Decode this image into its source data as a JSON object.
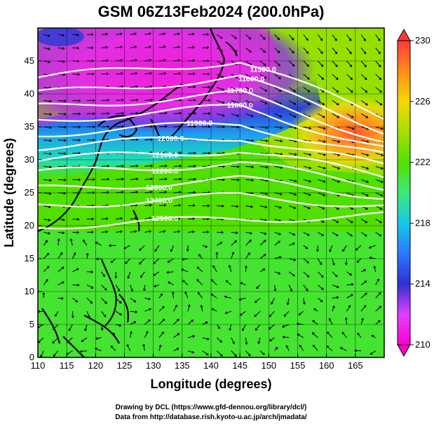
{
  "title": "GSM 06Z13Feb2024 (200.0hPa)",
  "xlabel": "Longitude (degrees)",
  "ylabel": "Latitude (degrees)",
  "credit_line1": "Drawing by DCL (https://www.gfd-dennou.org/library/dcl/)",
  "credit_line2": "Data from http://database.rish.kyoto-u.ac.jp/arch/jmadata/",
  "chart_data": {
    "type": "heatmap",
    "title": "GSM 06Z13Feb2024 (200.0hPa)",
    "xlabel": "Longitude (degrees)",
    "ylabel": "Latitude (degrees)",
    "xlim": [
      110,
      170
    ],
    "ylim": [
      0,
      50
    ],
    "x_ticks": [
      "110",
      "115",
      "120",
      "125",
      "130",
      "135",
      "140",
      "145",
      "150",
      "155",
      "160",
      "165"
    ],
    "y_ticks": [
      "0",
      "5",
      "10",
      "15",
      "20",
      "25",
      "30",
      "35",
      "40",
      "45"
    ],
    "colorbar": {
      "min": 210,
      "max": 230,
      "ticks": [
        "210",
        "214",
        "218",
        "222",
        "226",
        "230"
      ],
      "palette": [
        "#ff00cc",
        "#e040ff",
        "#3030d0",
        "#2a7aff",
        "#17c7e6",
        "#3ee87a",
        "#52e000",
        "#a6e000",
        "#f6d800",
        "#ff8c1a",
        "#ff3a3a"
      ]
    },
    "temperature_field_notes": "cold pool (~210K) over northeast Asia/Japan Sea, warm core (~228K) near 160-168E 33-40N",
    "height_contours": [
      {
        "label": "11500.0",
        "value": 11500
      },
      {
        "label": "11600.0",
        "value": 11600
      },
      {
        "label": "11700.0",
        "value": 11700
      },
      {
        "label": "11800.0",
        "value": 11800
      },
      {
        "label": "11900.0",
        "value": 11900
      },
      {
        "label": "12000.0",
        "value": 12000
      },
      {
        "label": "12100.0",
        "value": 12100
      },
      {
        "label": "12200.0",
        "value": 12200
      },
      {
        "label": "12300.0",
        "value": 12300
      },
      {
        "label": "12400.0",
        "value": 12400
      },
      {
        "label": "12500.0",
        "value": 12500
      }
    ],
    "grid": true,
    "legend": "colorbar-right"
  }
}
